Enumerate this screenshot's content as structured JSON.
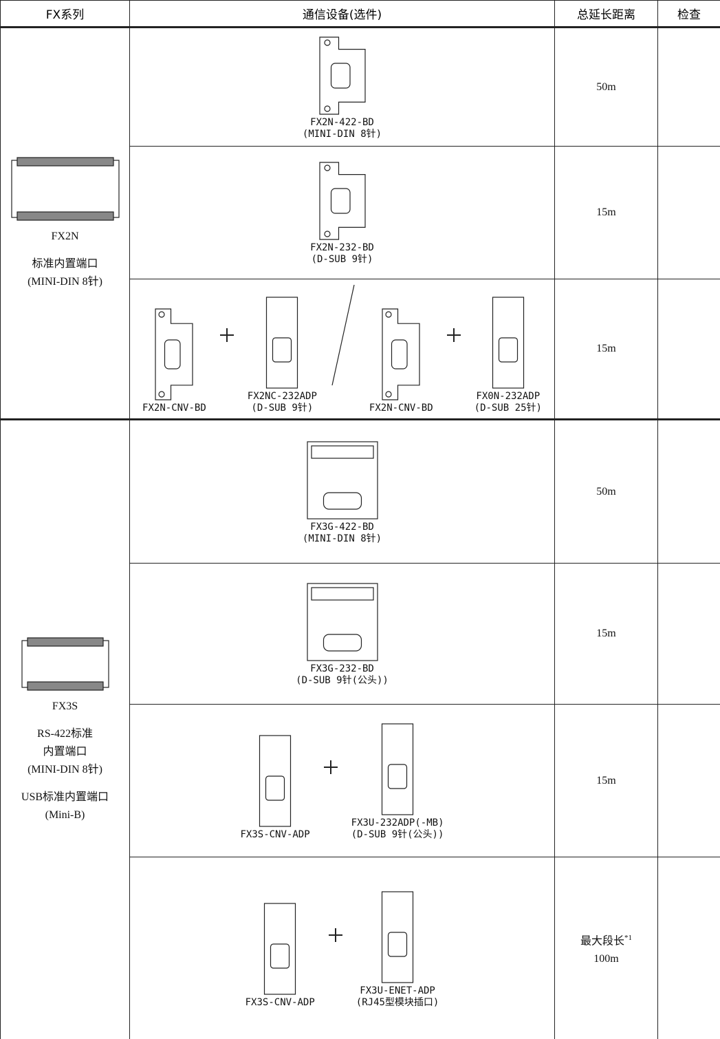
{
  "header": [
    "FX系列",
    "通信设备(选件)",
    "总延长距离",
    "检查"
  ],
  "groups": [
    {
      "series": "FX2N",
      "desc": [
        "标准内置端口",
        "(MINI-DIN 8针)"
      ],
      "rows": [
        {
          "devices": [
            {
              "model": "FX2N-422-BD",
              "note": "(MINI-DIN 8针)"
            }
          ],
          "distance": [
            "50m"
          ]
        },
        {
          "devices": [
            {
              "model": "FX2N-232-BD",
              "note": "(D-SUB 9针)"
            }
          ],
          "distance": [
            "15m"
          ]
        },
        {
          "devices": [
            {
              "model": "FX2N-CNV-BD"
            },
            {
              "model": "FX2NC-232ADP",
              "note": "(D-SUB 9针)"
            },
            {
              "model": "FX2N-CNV-BD"
            },
            {
              "model": "FX0N-232ADP",
              "note": "(D-SUB 25针)"
            }
          ],
          "distance": [
            "15m"
          ]
        }
      ]
    },
    {
      "series": "FX3S",
      "desc": [
        "RS-422标准",
        "内置端口",
        "(MINI-DIN 8针)",
        "USB标准内置端口",
        "(Mini-B)"
      ],
      "rows": [
        {
          "devices": [
            {
              "model": "FX3G-422-BD",
              "note": "(MINI-DIN 8针)"
            }
          ],
          "distance": [
            "50m"
          ]
        },
        {
          "devices": [
            {
              "model": "FX3G-232-BD",
              "note": "(D-SUB 9针(公头))"
            }
          ],
          "distance": [
            "15m"
          ]
        },
        {
          "devices": [
            {
              "model": "FX3S-CNV-ADP"
            },
            {
              "model": "FX3U-232ADP(-MB)",
              "note": "(D-SUB 9针(公头))"
            }
          ],
          "distance": [
            "15m"
          ]
        },
        {
          "devices": [
            {
              "model": "FX3S-CNV-ADP"
            },
            {
              "model": "FX3U-ENET-ADP",
              "note": "(RJ45型模块插口)"
            }
          ],
          "distance": [
            "最大段长",
            "100m"
          ],
          "footnote": "*1"
        }
      ]
    }
  ]
}
